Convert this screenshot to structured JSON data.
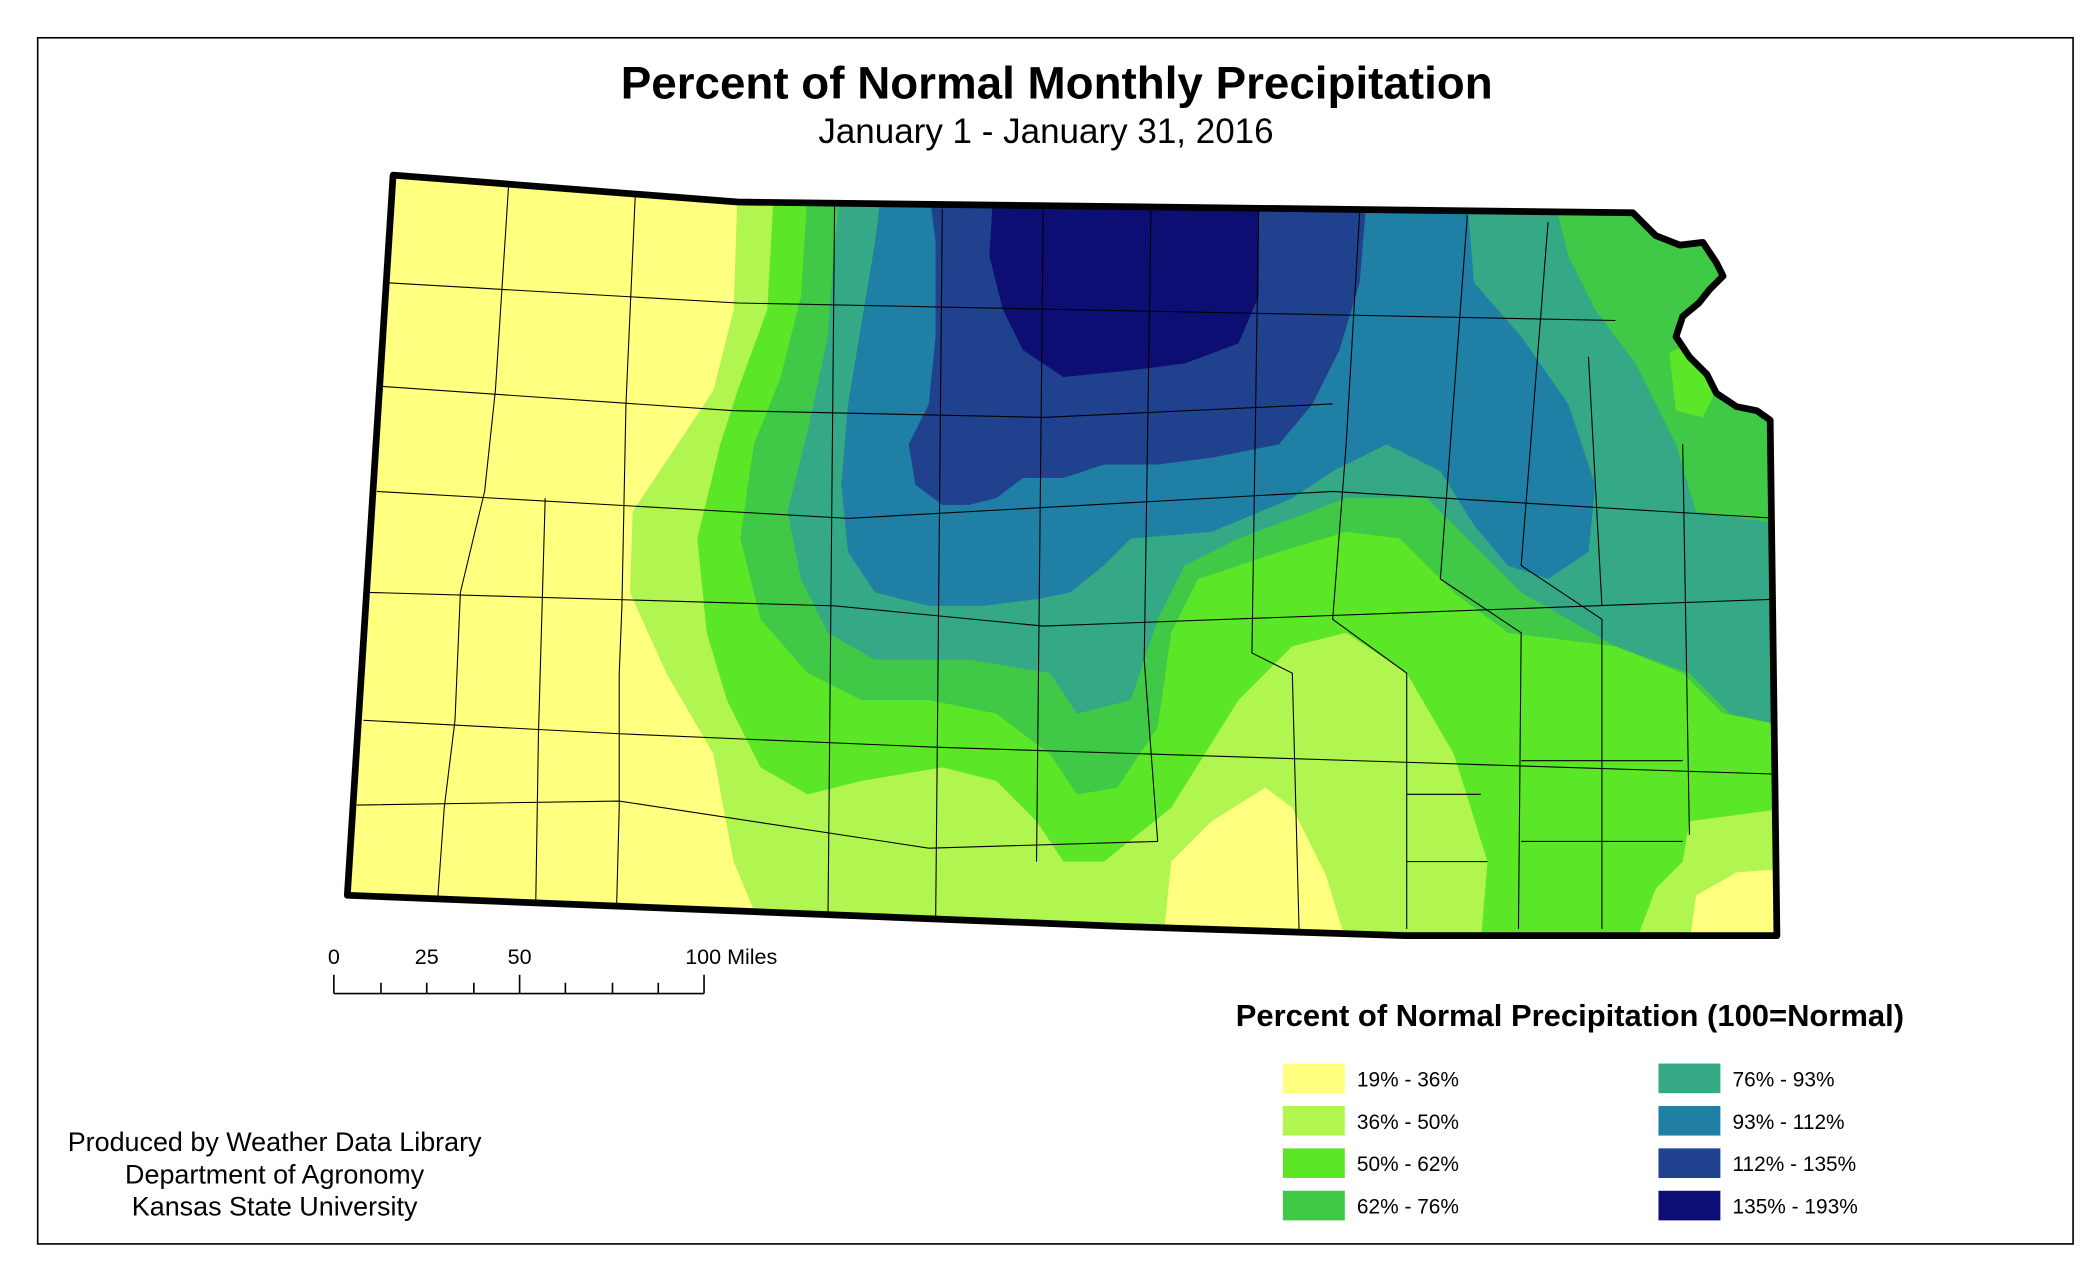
{
  "title": "Percent of Normal Monthly Precipitation",
  "subtitle": "January 1 - January 31, 2016",
  "scale_bar": {
    "labels": [
      "0",
      "25",
      "50",
      "100 Miles"
    ]
  },
  "legend": {
    "title": "Percent of Normal Precipitation (100=Normal)",
    "items": [
      {
        "label": "19% - 36%",
        "color": "#FFFF80"
      },
      {
        "label": "36% - 50%",
        "color": "#B0F550"
      },
      {
        "label": "50% - 62%",
        "color": "#5BE627"
      },
      {
        "label": "62% - 76%",
        "color": "#40C847"
      },
      {
        "label": "76% - 93%",
        "color": "#35A886"
      },
      {
        "label": "93% - 112%",
        "color": "#1F7FA4"
      },
      {
        "label": "112% - 135%",
        "color": "#1F418E"
      },
      {
        "label": "135% - 193%",
        "color": "#0D0E73"
      }
    ]
  },
  "credits": [
    "Produced by Weather Data Library",
    "Department of Agronomy",
    "Kansas State University"
  ]
}
